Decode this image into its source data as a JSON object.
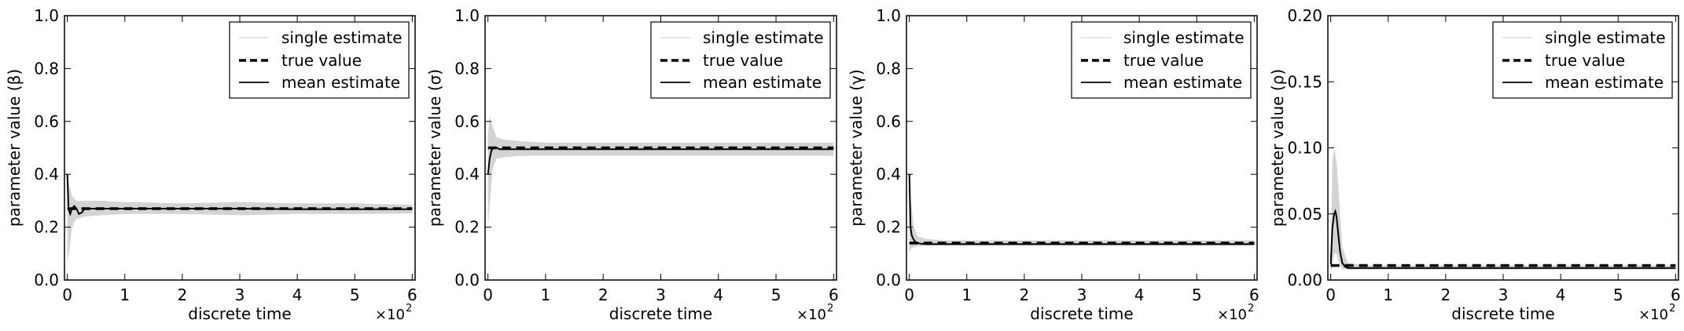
{
  "chart_data": [
    {
      "type": "line",
      "xlabel": "discrete time",
      "ylabel": "parameter value (β)",
      "x_multiplier": "×10",
      "x_multiplier_exp": "2",
      "xlim": [
        -0.05,
        6.05
      ],
      "ylim": [
        0.0,
        1.0
      ],
      "xticks": [
        0,
        1,
        2,
        3,
        4,
        5,
        6
      ],
      "yticks": [
        "0.0",
        "0.2",
        "0.4",
        "0.6",
        "0.8",
        "1.0"
      ],
      "grid": false,
      "legend_position": "top-right",
      "legend": [
        "single estimate",
        "true value",
        "mean estimate"
      ],
      "series": [
        {
          "name": "true value",
          "style": "dashed",
          "x": [
            0,
            6
          ],
          "y": [
            0.27,
            0.27
          ]
        },
        {
          "name": "mean estimate",
          "style": "solid",
          "x": [
            0.0,
            0.02,
            0.05,
            0.08,
            0.12,
            0.16,
            0.2,
            0.25,
            0.3,
            0.4,
            0.6,
            1.0,
            2.0,
            3.0,
            4.0,
            5.0,
            6.0
          ],
          "y": [
            0.4,
            0.27,
            0.25,
            0.27,
            0.28,
            0.27,
            0.25,
            0.255,
            0.27,
            0.27,
            0.27,
            0.27,
            0.27,
            0.27,
            0.268,
            0.268,
            0.268
          ]
        },
        {
          "name": "single estimate",
          "style": "band",
          "x": [
            0.0,
            0.03,
            0.08,
            0.15,
            0.3,
            0.6,
            1.0,
            2.0,
            3.0,
            4.0,
            5.0,
            6.0
          ],
          "upper": [
            0.4,
            0.36,
            0.32,
            0.3,
            0.3,
            0.3,
            0.295,
            0.29,
            0.295,
            0.29,
            0.29,
            0.285
          ],
          "lower": [
            0.07,
            0.1,
            0.2,
            0.23,
            0.24,
            0.245,
            0.25,
            0.25,
            0.245,
            0.25,
            0.25,
            0.252
          ]
        }
      ]
    },
    {
      "type": "line",
      "xlabel": "discrete time",
      "ylabel": "parameter value (σ)",
      "x_multiplier": "×10",
      "x_multiplier_exp": "2",
      "xlim": [
        -0.05,
        6.05
      ],
      "ylim": [
        0.0,
        1.0
      ],
      "xticks": [
        0,
        1,
        2,
        3,
        4,
        5,
        6
      ],
      "yticks": [
        "0.0",
        "0.2",
        "0.4",
        "0.6",
        "0.8",
        "1.0"
      ],
      "grid": false,
      "legend_position": "top-right",
      "legend": [
        "single estimate",
        "true value",
        "mean estimate"
      ],
      "series": [
        {
          "name": "true value",
          "style": "dashed",
          "x": [
            0,
            6
          ],
          "y": [
            0.5,
            0.5
          ]
        },
        {
          "name": "mean estimate",
          "style": "solid",
          "x": [
            0.0,
            0.03,
            0.06,
            0.1,
            0.15,
            0.2,
            0.3,
            0.5,
            1.0,
            2.0,
            3.0,
            4.0,
            5.0,
            6.0
          ],
          "y": [
            0.4,
            0.46,
            0.49,
            0.5,
            0.5,
            0.495,
            0.495,
            0.495,
            0.495,
            0.495,
            0.495,
            0.495,
            0.495,
            0.495
          ]
        },
        {
          "name": "single estimate",
          "style": "band",
          "x": [
            0.0,
            0.03,
            0.08,
            0.15,
            0.3,
            0.6,
            1.0,
            2.0,
            3.0,
            4.0,
            5.0,
            6.0
          ],
          "upper": [
            0.55,
            0.62,
            0.58,
            0.54,
            0.53,
            0.525,
            0.52,
            0.52,
            0.52,
            0.52,
            0.52,
            0.52
          ],
          "lower": [
            0.2,
            0.28,
            0.42,
            0.46,
            0.465,
            0.47,
            0.47,
            0.47,
            0.47,
            0.47,
            0.47,
            0.47
          ]
        }
      ]
    },
    {
      "type": "line",
      "xlabel": "discrete time",
      "ylabel": "parameter value (γ)",
      "x_multiplier": "×10",
      "x_multiplier_exp": "2",
      "xlim": [
        -0.05,
        6.05
      ],
      "ylim": [
        0.0,
        1.0
      ],
      "xticks": [
        0,
        1,
        2,
        3,
        4,
        5,
        6
      ],
      "yticks": [
        "0.0",
        "0.2",
        "0.4",
        "0.6",
        "0.8",
        "1.0"
      ],
      "grid": false,
      "legend_position": "top-right",
      "legend": [
        "single estimate",
        "true value",
        "mean estimate"
      ],
      "series": [
        {
          "name": "true value",
          "style": "dashed",
          "x": [
            0,
            6
          ],
          "y": [
            0.14,
            0.14
          ]
        },
        {
          "name": "mean estimate",
          "style": "solid",
          "x": [
            0.0,
            0.02,
            0.04,
            0.07,
            0.1,
            0.15,
            0.2,
            0.3,
            0.5,
            1.0,
            2.0,
            3.0,
            4.0,
            5.0,
            6.0
          ],
          "y": [
            0.4,
            0.2,
            0.17,
            0.155,
            0.145,
            0.14,
            0.137,
            0.136,
            0.136,
            0.136,
            0.136,
            0.136,
            0.136,
            0.136,
            0.136
          ]
        },
        {
          "name": "single estimate",
          "style": "band",
          "x": [
            0.0,
            0.03,
            0.08,
            0.15,
            0.3,
            0.6,
            1.0,
            2.0,
            3.0,
            4.0,
            5.0,
            6.0
          ],
          "upper": [
            0.4,
            0.3,
            0.2,
            0.165,
            0.155,
            0.15,
            0.15,
            0.15,
            0.15,
            0.15,
            0.15,
            0.15
          ],
          "lower": [
            0.1,
            0.12,
            0.125,
            0.128,
            0.13,
            0.13,
            0.13,
            0.13,
            0.13,
            0.13,
            0.13,
            0.13
          ]
        }
      ]
    },
    {
      "type": "line",
      "xlabel": "discrete time",
      "ylabel": "parameter value (ρ)",
      "x_multiplier": "×10",
      "x_multiplier_exp": "2",
      "xlim": [
        -0.05,
        6.05
      ],
      "ylim": [
        0.0,
        0.2
      ],
      "xticks": [
        0,
        1,
        2,
        3,
        4,
        5,
        6
      ],
      "yticks": [
        "0.00",
        "0.05",
        "0.10",
        "0.15",
        "0.20"
      ],
      "grid": false,
      "legend_position": "top-right",
      "legend": [
        "single estimate",
        "true value",
        "mean estimate"
      ],
      "series": [
        {
          "name": "true value",
          "style": "dashed",
          "x": [
            0,
            6
          ],
          "y": [
            0.011,
            0.011
          ]
        },
        {
          "name": "mean estimate",
          "style": "solid",
          "x": [
            0.0,
            0.03,
            0.06,
            0.08,
            0.1,
            0.13,
            0.16,
            0.2,
            0.25,
            0.3,
            0.4,
            1.0,
            2.0,
            3.0,
            4.0,
            5.0,
            6.0
          ],
          "y": [
            0.012,
            0.04,
            0.05,
            0.052,
            0.048,
            0.035,
            0.022,
            0.013,
            0.01,
            0.009,
            0.009,
            0.009,
            0.009,
            0.009,
            0.009,
            0.009,
            0.009
          ]
        },
        {
          "name": "single estimate",
          "style": "band",
          "x": [
            0.0,
            0.03,
            0.06,
            0.1,
            0.15,
            0.2,
            0.3,
            0.6,
            1.0,
            2.0,
            3.0,
            4.0,
            5.0,
            6.0
          ],
          "upper": [
            0.02,
            0.09,
            0.1,
            0.09,
            0.06,
            0.025,
            0.013,
            0.011,
            0.011,
            0.011,
            0.011,
            0.011,
            0.011,
            0.011
          ],
          "lower": [
            0.005,
            0.01,
            0.02,
            0.02,
            0.012,
            0.008,
            0.008,
            0.008,
            0.008,
            0.008,
            0.008,
            0.008,
            0.008,
            0.008
          ]
        }
      ]
    }
  ]
}
